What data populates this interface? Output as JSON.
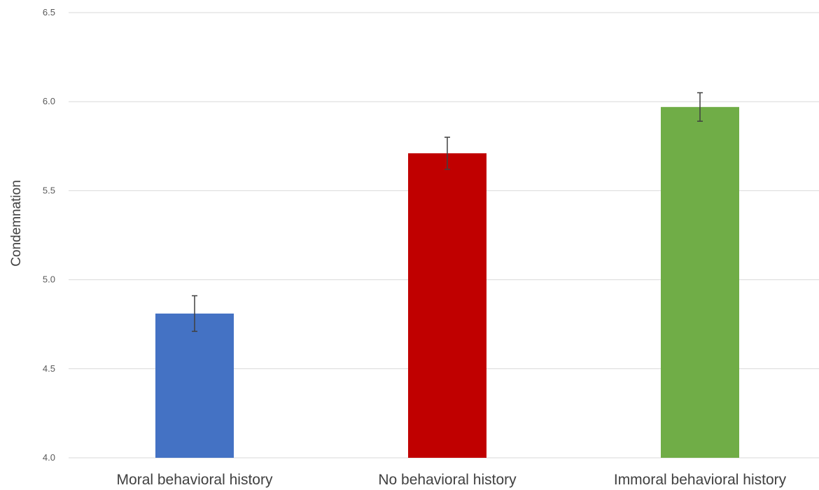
{
  "chart_data": {
    "type": "bar",
    "title": "",
    "xlabel": "",
    "ylabel": "Condemnation",
    "ylim": [
      4.0,
      6.5
    ],
    "yticks": [
      "4.0",
      "4.5",
      "5.0",
      "5.5",
      "6.0",
      "6.5"
    ],
    "grid": true,
    "legend": "none",
    "categories": [
      "Moral behavioral history",
      "No behavioral history",
      "Immoral behavioral history"
    ],
    "values": [
      4.81,
      5.71,
      5.97
    ],
    "error_low": [
      4.71,
      5.62,
      5.89
    ],
    "error_high": [
      4.91,
      5.8,
      6.05
    ],
    "colors": [
      "#4472c4",
      "#c00000",
      "#70ad47"
    ]
  }
}
